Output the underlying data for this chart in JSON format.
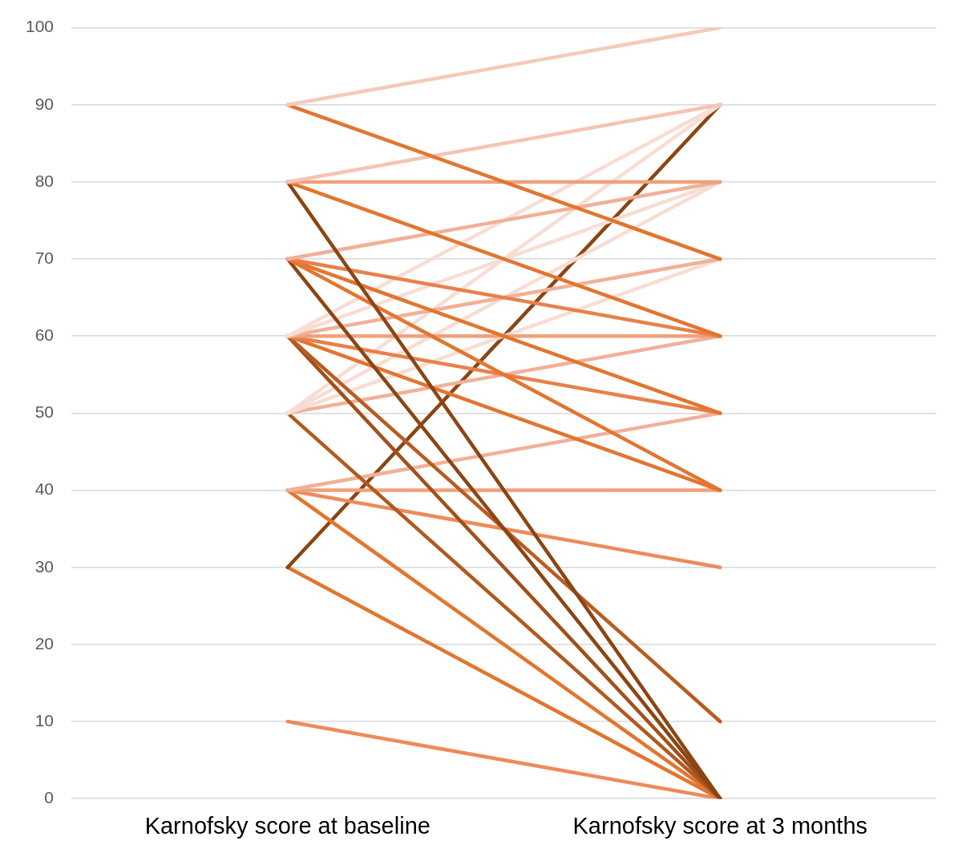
{
  "chart_data": {
    "type": "line",
    "categories": [
      "Karnofsky score at baseline",
      "Karnofsky score at 3 months"
    ],
    "ylim": [
      0,
      100
    ],
    "yticks": [
      0,
      10,
      20,
      30,
      40,
      50,
      60,
      70,
      80,
      90,
      100
    ],
    "grid": "y",
    "legend": false,
    "marker": "none",
    "line_style": "solid",
    "series": [
      {
        "color": "#f6c9b8",
        "values": [
          90,
          100
        ]
      },
      {
        "color": "#e2752f",
        "values": [
          90,
          70
        ]
      },
      {
        "color": "#f4c4b2",
        "values": [
          80,
          90
        ]
      },
      {
        "color": "#f0a07c",
        "values": [
          80,
          80
        ]
      },
      {
        "color": "#e2752f",
        "values": [
          80,
          60
        ]
      },
      {
        "color": "#8b4513",
        "values": [
          80,
          0
        ]
      },
      {
        "color": "#f2b098",
        "values": [
          70,
          80
        ]
      },
      {
        "color": "#e8804a",
        "values": [
          70,
          60
        ]
      },
      {
        "color": "#e2752f",
        "values": [
          70,
          50
        ]
      },
      {
        "color": "#e2752f",
        "values": [
          70,
          40
        ]
      },
      {
        "color": "#8b4513",
        "values": [
          70,
          0
        ]
      },
      {
        "color": "#f8ddd3",
        "values": [
          60,
          90
        ]
      },
      {
        "color": "#f8ddd3",
        "values": [
          60,
          80
        ]
      },
      {
        "color": "#f2b098",
        "values": [
          60,
          70
        ]
      },
      {
        "color": "#f0a07c",
        "values": [
          60,
          60
        ]
      },
      {
        "color": "#e8804a",
        "values": [
          60,
          50
        ]
      },
      {
        "color": "#e2752f",
        "values": [
          60,
          40
        ]
      },
      {
        "color": "#b85c20",
        "values": [
          60,
          10
        ]
      },
      {
        "color": "#a0501a",
        "values": [
          60,
          0
        ]
      },
      {
        "color": "#f8ddd3",
        "values": [
          50,
          90
        ]
      },
      {
        "color": "#f8ddd3",
        "values": [
          50,
          80
        ]
      },
      {
        "color": "#f8ddd3",
        "values": [
          50,
          70
        ]
      },
      {
        "color": "#f2b098",
        "values": [
          50,
          60
        ]
      },
      {
        "color": "#b05a20",
        "values": [
          50,
          0
        ]
      },
      {
        "color": "#f2b098",
        "values": [
          40,
          50
        ]
      },
      {
        "color": "#f0a07c",
        "values": [
          40,
          40
        ]
      },
      {
        "color": "#ee8a5a",
        "values": [
          40,
          30
        ]
      },
      {
        "color": "#e2752f",
        "values": [
          40,
          0
        ]
      },
      {
        "color": "#8b4513",
        "values": [
          30,
          90
        ]
      },
      {
        "color": "#e2752f",
        "values": [
          30,
          0
        ]
      },
      {
        "color": "#ee8a5a",
        "values": [
          10,
          0
        ]
      }
    ]
  }
}
